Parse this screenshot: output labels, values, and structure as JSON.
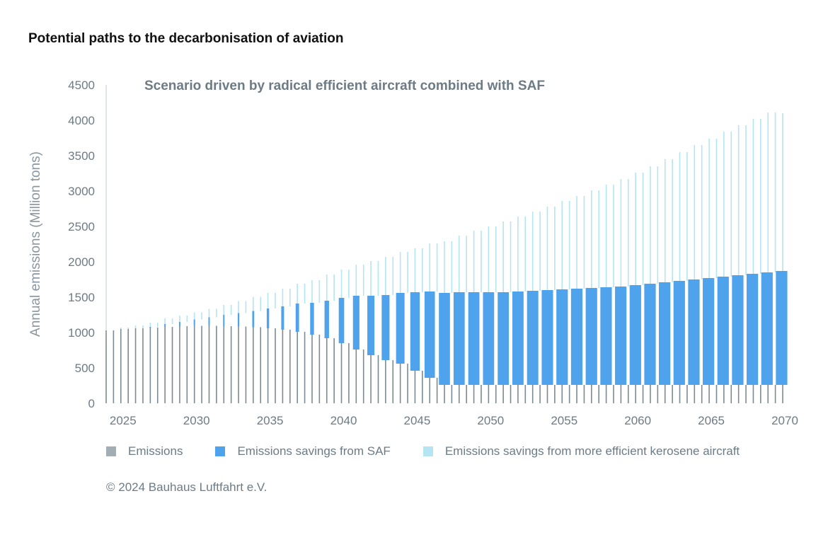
{
  "title": "Potential paths to the decarbonisation of aviation",
  "copyright": "© 2024 Bauhaus Luftfahrt e.V.",
  "chart_data": {
    "type": "bar",
    "stacked": true,
    "subtitle": "Scenario driven by radical efficient aircraft combined with SAF",
    "ylabel": "Annual emissions (Million tons)",
    "xlabel": "",
    "ylim": [
      0,
      4500
    ],
    "yticks": [
      0,
      500,
      1000,
      1500,
      2000,
      2500,
      3000,
      3500,
      4000,
      4500
    ],
    "xticks": [
      2025,
      2030,
      2035,
      2040,
      2045,
      2050,
      2055,
      2060,
      2065,
      2070
    ],
    "grid": false,
    "legend_position": "bottom",
    "categories": [
      2024,
      2025,
      2026,
      2027,
      2028,
      2029,
      2030,
      2031,
      2032,
      2033,
      2034,
      2035,
      2036,
      2037,
      2038,
      2039,
      2040,
      2041,
      2042,
      2043,
      2044,
      2045,
      2046,
      2047,
      2048,
      2049,
      2050,
      2051,
      2052,
      2053,
      2054,
      2055,
      2056,
      2057,
      2058,
      2059,
      2060,
      2061,
      2062,
      2063,
      2064,
      2065,
      2066,
      2067,
      2068,
      2069,
      2070
    ],
    "series": [
      {
        "name": "Emissions",
        "color": "#a3aeb4",
        "values": [
          1030,
          1050,
          1060,
          1070,
          1080,
          1090,
          1095,
          1095,
          1090,
          1085,
          1075,
          1060,
          1040,
          1010,
          970,
          920,
          850,
          760,
          680,
          610,
          560,
          460,
          360,
          260,
          260,
          260,
          260,
          260,
          260,
          260,
          260,
          260,
          260,
          260,
          260,
          260,
          260,
          260,
          260,
          260,
          260,
          260,
          260,
          260,
          260,
          260,
          260
        ]
      },
      {
        "name": "Emissions savings from SAF",
        "color": "#4fa3ec",
        "values": [
          0,
          0,
          0,
          10,
          40,
          60,
          90,
          120,
          160,
          190,
          230,
          280,
          330,
          400,
          450,
          530,
          640,
          760,
          840,
          920,
          1000,
          1110,
          1220,
          1300,
          1310,
          1310,
          1310,
          1310,
          1320,
          1330,
          1340,
          1350,
          1360,
          1370,
          1380,
          1390,
          1410,
          1430,
          1450,
          1470,
          1490,
          1510,
          1530,
          1550,
          1570,
          1590,
          1610
        ]
      },
      {
        "name": "Emissions savings from more efficient kerosene aircraft",
        "color": "#b5e4f3",
        "values": [
          0,
          20,
          40,
          60,
          80,
          90,
          100,
          120,
          140,
          170,
          200,
          220,
          250,
          280,
          320,
          370,
          400,
          440,
          490,
          540,
          580,
          620,
          680,
          730,
          800,
          870,
          930,
          1000,
          1060,
          1120,
          1180,
          1250,
          1310,
          1380,
          1450,
          1520,
          1590,
          1660,
          1740,
          1820,
          1900,
          1970,
          2050,
          2120,
          2190,
          2260,
          2230
        ]
      }
    ]
  }
}
